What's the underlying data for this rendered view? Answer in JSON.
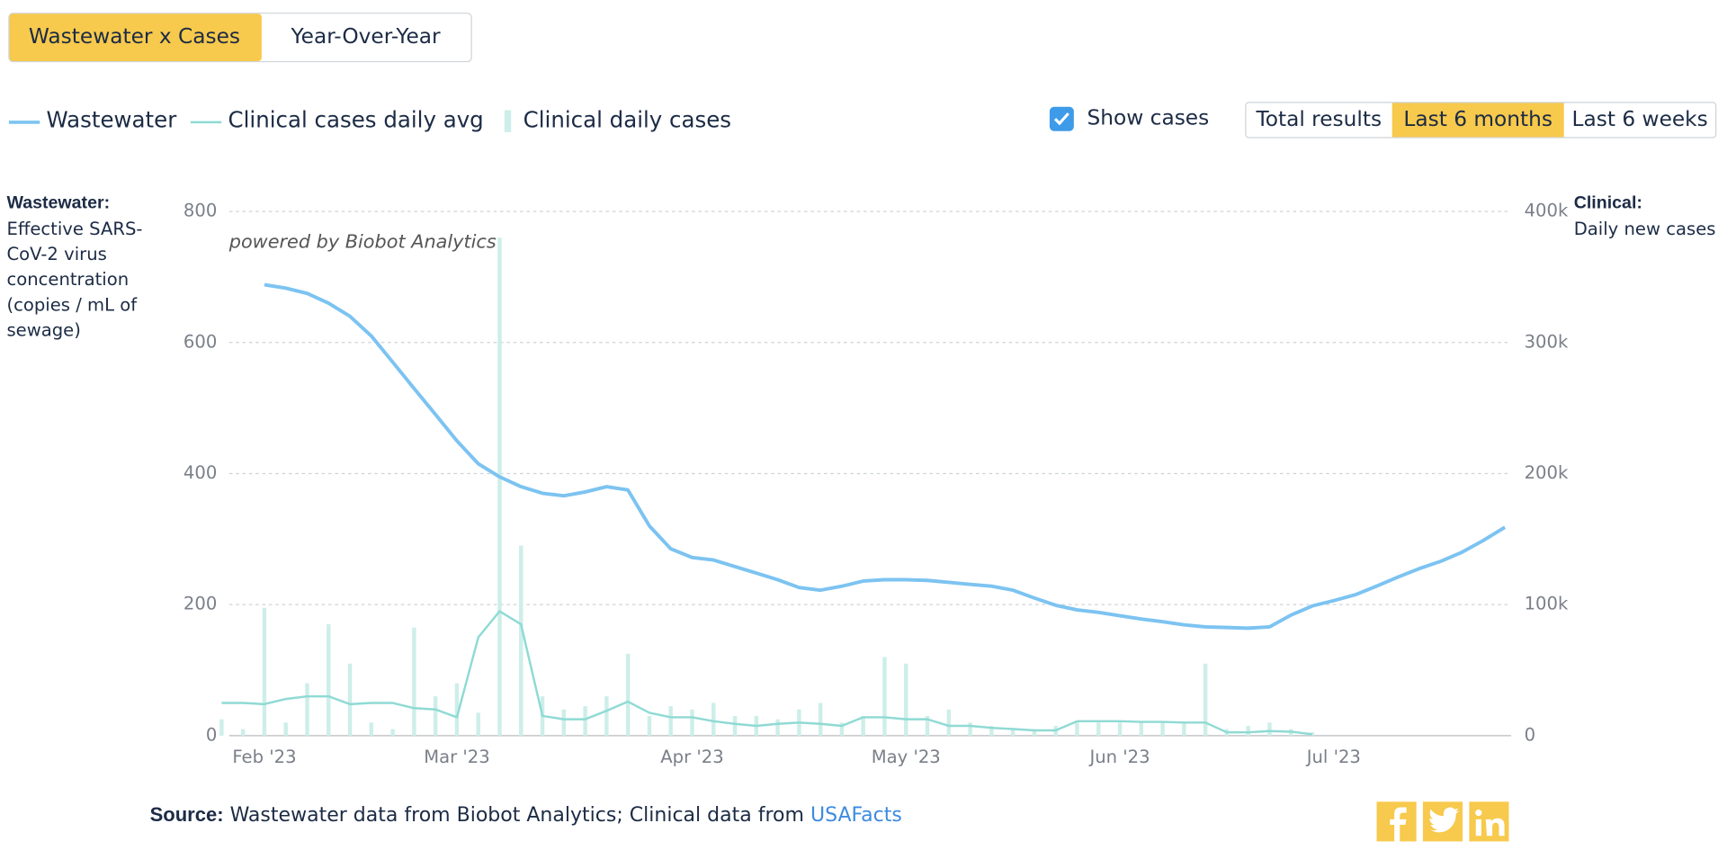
{
  "tabs": [
    "Wastewater x Cases",
    "Year-Over-Year"
  ],
  "show_cases": "Show cases",
  "ranges": [
    "Total results",
    "Last 6 months",
    "Last 6 weeks"
  ],
  "selected_range": "Last 6 months",
  "left_axis": {
    "title": "Wastewater:",
    "text": "Effective SARS-CoV-2 virus concentration (copies / mL of sewage)"
  },
  "right_axis": {
    "title": "Clinical:",
    "text": "Daily new cases"
  },
  "watermark": "powered by Biobot Analytics",
  "source": {
    "label": "Source:",
    "text": "Wastewater data from Biobot Analytics; Clinical data from ",
    "link": "USAFacts"
  },
  "chart_data": {
    "type": "line",
    "categories": [
      null,
      null,
      "Feb '23",
      null,
      null,
      null,
      null,
      null,
      null,
      null,
      null,
      "Mar '23",
      null,
      null,
      null,
      null,
      null,
      null,
      null,
      null,
      null,
      null,
      "Apr '23",
      null,
      null,
      null,
      null,
      null,
      null,
      null,
      null,
      null,
      "May '23",
      null,
      null,
      null,
      null,
      null,
      null,
      null,
      null,
      null,
      "Jun '23",
      null,
      null,
      null,
      null,
      null,
      null,
      null,
      null,
      null,
      "Jul '23",
      null,
      null,
      null,
      null,
      null,
      null,
      null,
      null
    ],
    "ylim": [
      0,
      800
    ],
    "yticks": [
      0,
      200,
      400,
      600,
      800
    ],
    "y2lim": [
      0,
      400000
    ],
    "y2ticks": [
      0,
      {
        "value": 100000,
        "label": "100k"
      },
      {
        "value": 200000,
        "label": "200k"
      },
      {
        "value": 300000,
        "label": "300k"
      },
      {
        "value": 400000,
        "label": "400k"
      }
    ],
    "grid": true,
    "series": [
      {
        "name": "Wastewater",
        "color": "#7cc3f1",
        "values": [
          null,
          null,
          688,
          683,
          675,
          660,
          640,
          610,
          570,
          530,
          490,
          450,
          415,
          395,
          380,
          370,
          366,
          372,
          380,
          375,
          320,
          285,
          272,
          268,
          258,
          248,
          238,
          226,
          222,
          228,
          236,
          238,
          238,
          237,
          234,
          231,
          228,
          222,
          210,
          199,
          192,
          188,
          183,
          178,
          174,
          169,
          166,
          165,
          164,
          166,
          184,
          198,
          206,
          215,
          228,
          242,
          255,
          266,
          280,
          298,
          318
        ]
      },
      {
        "name": "Clinical cases daily avg",
        "color": "#8fdad4",
        "axis": "y2",
        "values": [
          25000,
          25000,
          24000,
          28000,
          30000,
          30000,
          24000,
          25000,
          25000,
          21000,
          20000,
          14000,
          75000,
          95000,
          85000,
          15000,
          12500,
          12500,
          19000,
          26000,
          17500,
          14000,
          14000,
          11000,
          9000,
          7500,
          9000,
          10000,
          9000,
          7500,
          14000,
          14000,
          12500,
          12500,
          7500,
          7500,
          6000,
          5000,
          4000,
          4000,
          11000,
          11000,
          11000,
          10500,
          10500,
          10000,
          10000,
          2500,
          2500,
          3500,
          3000,
          1000,
          null,
          null,
          null,
          null,
          null,
          null,
          null,
          null,
          null
        ]
      },
      {
        "name": "Clinical daily cases",
        "color": "#cdeee9",
        "axis": "y2",
        "mark": "bar",
        "values": [
          12500,
          5000,
          97500,
          10000,
          40000,
          85000,
          55000,
          10000,
          5000,
          82500,
          30000,
          40000,
          17500,
          380000,
          145000,
          30000,
          20000,
          22500,
          30000,
          62500,
          15000,
          22500,
          20000,
          25000,
          15000,
          15000,
          12500,
          20000,
          25000,
          10000,
          15000,
          60000,
          55000,
          15000,
          20000,
          10000,
          7500,
          5000,
          5000,
          7500,
          10000,
          10000,
          10000,
          10000,
          10000,
          10000,
          55000,
          5000,
          7500,
          10000,
          5000,
          2500,
          null,
          null,
          null,
          null,
          null,
          null,
          null,
          null,
          null
        ]
      }
    ]
  }
}
